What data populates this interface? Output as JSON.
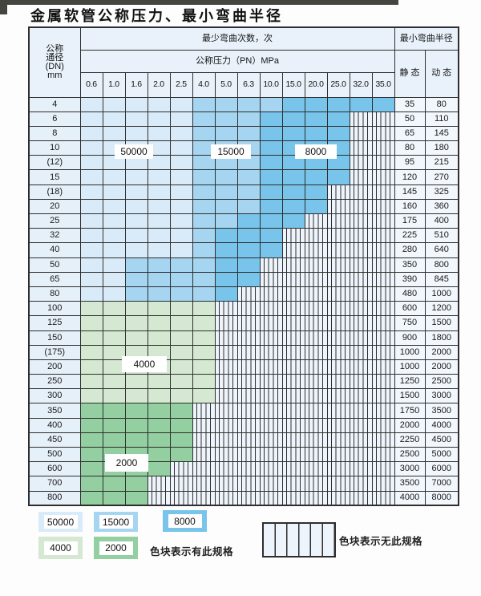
{
  "title": "金属软管公称压力、最小弯曲半径",
  "colors": {
    "blue_50000": "#d9ebf8",
    "blue_15000": "#a5d5f0",
    "blue_8000": "#78c4ea",
    "green_4000": "#d5e8d2",
    "green_2000": "#93cfa0",
    "striped_bg": "#eef4fb",
    "grid": "#2e2e2e"
  },
  "table": {
    "corner": {
      "l1": "公称",
      "l2": "通径",
      "l3": "(DN)",
      "l4": "mm"
    },
    "cycles_header": "最少弯曲次数，次",
    "pressure_header": "公称压力（PN）MPa",
    "radius_header": "最小弯曲半径",
    "static_label": "静 态",
    "dynamic_label": "动 态",
    "pressure_cols": [
      "0.6",
      "1.0",
      "1.6",
      "2.0",
      "2.5",
      "4.0",
      "5.0",
      "6.3",
      "10.0",
      "15.0",
      "20.0",
      "25.0",
      "32.0",
      "35.0"
    ],
    "zone_legend_key": {
      "L": "50000",
      "M": "15000",
      "D": "8000",
      "G4": "4000",
      "G2": "2000",
      "X": "none"
    },
    "rows": [
      {
        "dn": "4",
        "cells": [
          "L",
          "L",
          "L",
          "L",
          "L",
          "M",
          "M",
          "M",
          "M",
          "D",
          "D",
          "D",
          "D",
          "D"
        ],
        "static": "35",
        "dynamic": "80"
      },
      {
        "dn": "6",
        "cells": [
          "L",
          "L",
          "L",
          "L",
          "L",
          "M",
          "M",
          "M",
          "D",
          "D",
          "D",
          "D",
          "X",
          "X"
        ],
        "static": "50",
        "dynamic": "110"
      },
      {
        "dn": "8",
        "cells": [
          "L",
          "L",
          "L",
          "L",
          "L",
          "M",
          "M",
          "M",
          "D",
          "D",
          "D",
          "D",
          "X",
          "X"
        ],
        "static": "65",
        "dynamic": "145"
      },
      {
        "dn": "10",
        "cells": [
          "L",
          "L",
          "L",
          "L",
          "L",
          "M",
          "M",
          "M",
          "D",
          "D",
          "D",
          "D",
          "X",
          "X"
        ],
        "static": "80",
        "dynamic": "180"
      },
      {
        "dn": "(12)",
        "cells": [
          "L",
          "L",
          "L",
          "L",
          "L",
          "M",
          "M",
          "M",
          "D",
          "D",
          "D",
          "D",
          "X",
          "X"
        ],
        "static": "95",
        "dynamic": "215"
      },
      {
        "dn": "15",
        "cells": [
          "L",
          "L",
          "L",
          "L",
          "L",
          "M",
          "M",
          "M",
          "D",
          "D",
          "D",
          "D",
          "X",
          "X"
        ],
        "static": "120",
        "dynamic": "270"
      },
      {
        "dn": "(18)",
        "cells": [
          "L",
          "L",
          "L",
          "L",
          "L",
          "M",
          "M",
          "M",
          "D",
          "D",
          "D",
          "X",
          "X",
          "X"
        ],
        "static": "145",
        "dynamic": "325"
      },
      {
        "dn": "20",
        "cells": [
          "L",
          "L",
          "L",
          "L",
          "L",
          "M",
          "M",
          "M",
          "D",
          "D",
          "D",
          "X",
          "X",
          "X"
        ],
        "static": "160",
        "dynamic": "360"
      },
      {
        "dn": "25",
        "cells": [
          "L",
          "L",
          "L",
          "L",
          "L",
          "M",
          "M",
          "D",
          "D",
          "D",
          "X",
          "X",
          "X",
          "X"
        ],
        "static": "175",
        "dynamic": "400"
      },
      {
        "dn": "32",
        "cells": [
          "L",
          "L",
          "L",
          "L",
          "L",
          "M",
          "D",
          "D",
          "D",
          "X",
          "X",
          "X",
          "X",
          "X"
        ],
        "static": "225",
        "dynamic": "510"
      },
      {
        "dn": "40",
        "cells": [
          "L",
          "L",
          "L",
          "L",
          "L",
          "M",
          "D",
          "D",
          "D",
          "X",
          "X",
          "X",
          "X",
          "X"
        ],
        "static": "280",
        "dynamic": "640"
      },
      {
        "dn": "50",
        "cells": [
          "L",
          "L",
          "M",
          "M",
          "M",
          "M",
          "D",
          "D",
          "X",
          "X",
          "X",
          "X",
          "X",
          "X"
        ],
        "static": "350",
        "dynamic": "800"
      },
      {
        "dn": "65",
        "cells": [
          "L",
          "L",
          "M",
          "M",
          "M",
          "M",
          "D",
          "D",
          "X",
          "X",
          "X",
          "X",
          "X",
          "X"
        ],
        "static": "390",
        "dynamic": "845"
      },
      {
        "dn": "80",
        "cells": [
          "L",
          "L",
          "M",
          "M",
          "M",
          "M",
          "D",
          "X",
          "X",
          "X",
          "X",
          "X",
          "X",
          "X"
        ],
        "static": "480",
        "dynamic": "1000"
      },
      {
        "dn": "100",
        "cells": [
          "G4",
          "G4",
          "G4",
          "G4",
          "G4",
          "G4",
          "X",
          "X",
          "X",
          "X",
          "X",
          "X",
          "X",
          "X"
        ],
        "static": "600",
        "dynamic": "1200"
      },
      {
        "dn": "125",
        "cells": [
          "G4",
          "G4",
          "G4",
          "G4",
          "G4",
          "G4",
          "X",
          "X",
          "X",
          "X",
          "X",
          "X",
          "X",
          "X"
        ],
        "static": "750",
        "dynamic": "1500"
      },
      {
        "dn": "150",
        "cells": [
          "G4",
          "G4",
          "G4",
          "G4",
          "G4",
          "G4",
          "X",
          "X",
          "X",
          "X",
          "X",
          "X",
          "X",
          "X"
        ],
        "static": "900",
        "dynamic": "1800"
      },
      {
        "dn": "(175)",
        "cells": [
          "G4",
          "G4",
          "G4",
          "G4",
          "G4",
          "G4",
          "X",
          "X",
          "X",
          "X",
          "X",
          "X",
          "X",
          "X"
        ],
        "static": "1000",
        "dynamic": "2000"
      },
      {
        "dn": "200",
        "cells": [
          "G4",
          "G4",
          "G4",
          "G4",
          "G4",
          "G4",
          "X",
          "X",
          "X",
          "X",
          "X",
          "X",
          "X",
          "X"
        ],
        "static": "1000",
        "dynamic": "2000"
      },
      {
        "dn": "250",
        "cells": [
          "G4",
          "G4",
          "G4",
          "G4",
          "G4",
          "G4",
          "X",
          "X",
          "X",
          "X",
          "X",
          "X",
          "X",
          "X"
        ],
        "static": "1250",
        "dynamic": "2500"
      },
      {
        "dn": "300",
        "cells": [
          "G4",
          "G4",
          "G4",
          "G4",
          "G4",
          "G4",
          "X",
          "X",
          "X",
          "X",
          "X",
          "X",
          "X",
          "X"
        ],
        "static": "1500",
        "dynamic": "3000"
      },
      {
        "dn": "350",
        "cells": [
          "G2",
          "G2",
          "G2",
          "G2",
          "G2",
          "X",
          "X",
          "X",
          "X",
          "X",
          "X",
          "X",
          "X",
          "X"
        ],
        "static": "1750",
        "dynamic": "3500"
      },
      {
        "dn": "400",
        "cells": [
          "G2",
          "G2",
          "G2",
          "G2",
          "G2",
          "X",
          "X",
          "X",
          "X",
          "X",
          "X",
          "X",
          "X",
          "X"
        ],
        "static": "2000",
        "dynamic": "4000"
      },
      {
        "dn": "450",
        "cells": [
          "G2",
          "G2",
          "G2",
          "G2",
          "G2",
          "X",
          "X",
          "X",
          "X",
          "X",
          "X",
          "X",
          "X",
          "X"
        ],
        "static": "2250",
        "dynamic": "4500"
      },
      {
        "dn": "500",
        "cells": [
          "G2",
          "G2",
          "G2",
          "G2",
          "G2",
          "X",
          "X",
          "X",
          "X",
          "X",
          "X",
          "X",
          "X",
          "X"
        ],
        "static": "2500",
        "dynamic": "5000"
      },
      {
        "dn": "600",
        "cells": [
          "G2",
          "G2",
          "G2",
          "G2",
          "X",
          "X",
          "X",
          "X",
          "X",
          "X",
          "X",
          "X",
          "X",
          "X"
        ],
        "static": "3000",
        "dynamic": "6000"
      },
      {
        "dn": "700",
        "cells": [
          "G2",
          "G2",
          "G2",
          "X",
          "X",
          "X",
          "X",
          "X",
          "X",
          "X",
          "X",
          "X",
          "X",
          "X"
        ],
        "static": "3500",
        "dynamic": "7000"
      },
      {
        "dn": "800",
        "cells": [
          "G2",
          "G2",
          "G2",
          "X",
          "X",
          "X",
          "X",
          "X",
          "X",
          "X",
          "X",
          "X",
          "X",
          "X"
        ],
        "static": "4000",
        "dynamic": "8000"
      }
    ]
  },
  "overlay_labels": {
    "blue_50000": "50000",
    "blue_15000": "15000",
    "blue_8000": "8000",
    "green_4000": "4000",
    "green_2000": "2000"
  },
  "legend": {
    "c50000": "50000",
    "c15000": "15000",
    "c8000": "8000",
    "c4000": "4000",
    "c2000": "2000",
    "has_note": "色块表示有此规格",
    "none_note": "色块表示无此规格"
  }
}
